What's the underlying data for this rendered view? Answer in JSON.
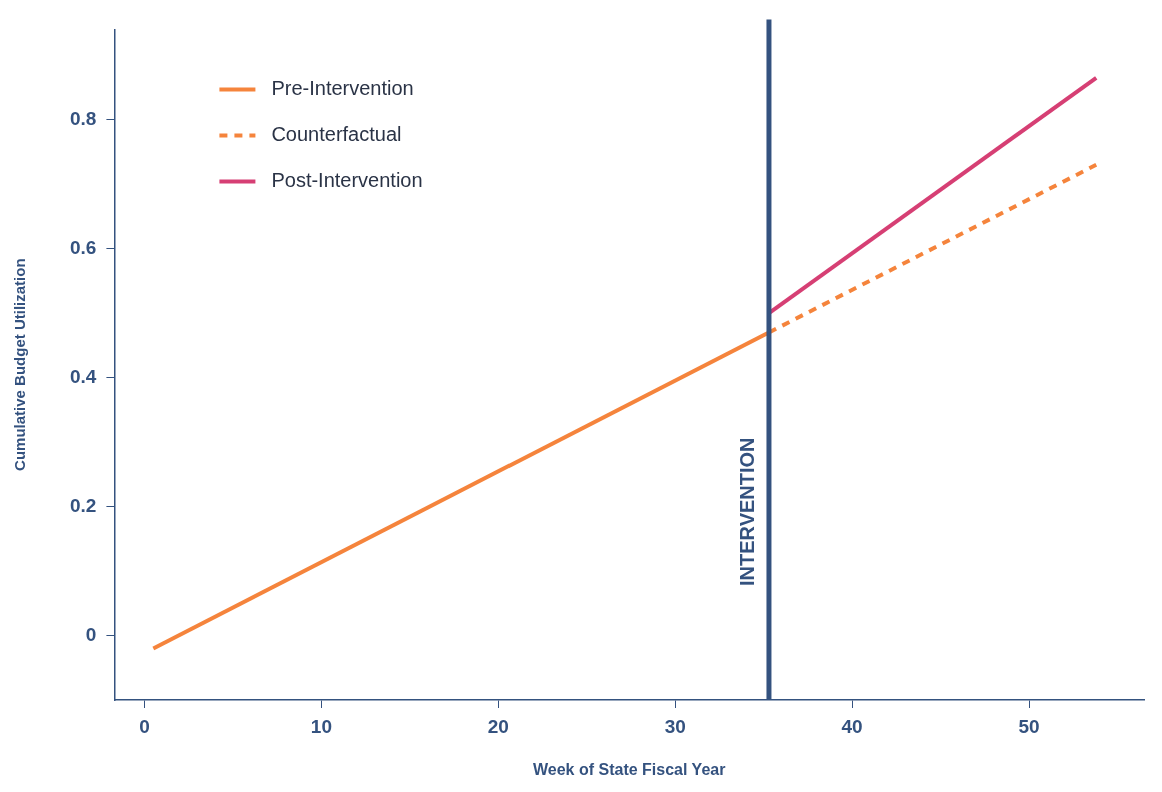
{
  "chart_data": {
    "type": "line",
    "xlabel": "Week of State Fiscal Year",
    "ylabel": "Cumulative Budget Utilization",
    "series": [
      {
        "name": "Pre-Intervention",
        "color": "#f5843c",
        "x": [
          0.5,
          35.3
        ],
        "values": [
          -0.02,
          0.47
        ],
        "line_style": "solid"
      },
      {
        "name": "Counterfactual",
        "color": "#f5843c",
        "x": [
          35.3,
          53.8
        ],
        "values": [
          0.47,
          0.73
        ],
        "line_style": "dashed"
      },
      {
        "name": "Post-Intervention",
        "color": "#d63f74",
        "x": [
          35.3,
          53.8
        ],
        "values": [
          0.5,
          0.865
        ],
        "line_style": "solid"
      }
    ],
    "xlim": [
      -1.7,
      56.5
    ],
    "xticks": [
      0,
      10,
      20,
      30,
      40,
      50
    ],
    "ylim": [
      -0.1,
      0.94
    ],
    "yticks": [
      0,
      0.2,
      0.4,
      0.6,
      0.8
    ],
    "ref_lines": [
      {
        "axis": "x",
        "value": 35.3,
        "label": "INTERVENTION",
        "color": "#34527f"
      }
    ],
    "grid": false,
    "legend": "top left",
    "marker": "none"
  }
}
